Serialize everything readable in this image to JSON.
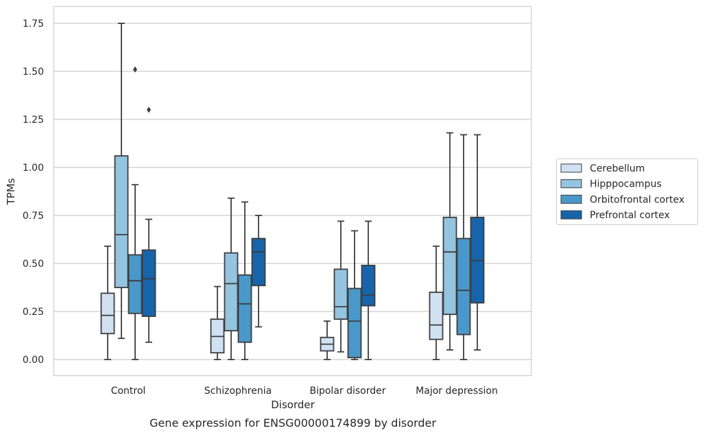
{
  "caption": "Gene expression for ENSG00000174899 by disorder",
  "chart_data": {
    "type": "box",
    "xlabel": "Disorder",
    "ylabel": "TPMs",
    "ylim": [
      -0.08,
      1.84
    ],
    "yticks": [
      0.0,
      0.25,
      0.5,
      0.75,
      1.0,
      1.25,
      1.5,
      1.75
    ],
    "ytick_labels": [
      "0.00",
      "0.25",
      "0.50",
      "0.75",
      "1.00",
      "1.25",
      "1.50",
      "1.75"
    ],
    "grid": "horizontal",
    "legend_position": "right",
    "categories": [
      "Control",
      "Schizophrenia",
      "Bipolar disorder",
      "Major depression"
    ],
    "series": [
      {
        "name": "Cerebellum",
        "color": "#d0e1f2",
        "boxes": [
          {
            "whisker_low": 0.0,
            "q1": 0.135,
            "median": 0.23,
            "q3": 0.345,
            "whisker_high": 0.59,
            "outliers": []
          },
          {
            "whisker_low": 0.0,
            "q1": 0.035,
            "median": 0.12,
            "q3": 0.21,
            "whisker_high": 0.38,
            "outliers": []
          },
          {
            "whisker_low": 0.0,
            "q1": 0.045,
            "median": 0.08,
            "q3": 0.115,
            "whisker_high": 0.2,
            "outliers": []
          },
          {
            "whisker_low": 0.0,
            "q1": 0.105,
            "median": 0.18,
            "q3": 0.35,
            "whisker_high": 0.59,
            "outliers": []
          }
        ]
      },
      {
        "name": "Hipppocampus",
        "color": "#94c4df",
        "boxes": [
          {
            "whisker_low": 0.11,
            "q1": 0.375,
            "median": 0.65,
            "q3": 1.06,
            "whisker_high": 1.75,
            "outliers": []
          },
          {
            "whisker_low": 0.0,
            "q1": 0.15,
            "median": 0.395,
            "q3": 0.555,
            "whisker_high": 0.84,
            "outliers": []
          },
          {
            "whisker_low": 0.04,
            "q1": 0.21,
            "median": 0.275,
            "q3": 0.47,
            "whisker_high": 0.72,
            "outliers": []
          },
          {
            "whisker_low": 0.05,
            "q1": 0.235,
            "median": 0.56,
            "q3": 0.74,
            "whisker_high": 1.18,
            "outliers": []
          }
        ]
      },
      {
        "name": "Orbitofrontal cortex",
        "color": "#4a98c9",
        "boxes": [
          {
            "whisker_low": 0.0,
            "q1": 0.24,
            "median": 0.41,
            "q3": 0.545,
            "whisker_high": 0.91,
            "outliers": [
              1.51
            ]
          },
          {
            "whisker_low": 0.0,
            "q1": 0.09,
            "median": 0.29,
            "q3": 0.44,
            "whisker_high": 0.82,
            "outliers": []
          },
          {
            "whisker_low": 0.0,
            "q1": 0.01,
            "median": 0.2,
            "q3": 0.37,
            "whisker_high": 0.67,
            "outliers": []
          },
          {
            "whisker_low": 0.0,
            "q1": 0.13,
            "median": 0.36,
            "q3": 0.63,
            "whisker_high": 1.17,
            "outliers": []
          }
        ]
      },
      {
        "name": "Prefrontal cortex",
        "color": "#1764ab",
        "boxes": [
          {
            "whisker_low": 0.09,
            "q1": 0.225,
            "median": 0.42,
            "q3": 0.57,
            "whisker_high": 0.73,
            "outliers": [
              1.3
            ]
          },
          {
            "whisker_low": 0.17,
            "q1": 0.385,
            "median": 0.56,
            "q3": 0.63,
            "whisker_high": 0.75,
            "outliers": []
          },
          {
            "whisker_low": 0.0,
            "q1": 0.28,
            "median": 0.335,
            "q3": 0.49,
            "whisker_high": 0.72,
            "outliers": []
          },
          {
            "whisker_low": 0.05,
            "q1": 0.295,
            "median": 0.515,
            "q3": 0.74,
            "whisker_high": 1.17,
            "outliers": []
          }
        ]
      }
    ]
  }
}
